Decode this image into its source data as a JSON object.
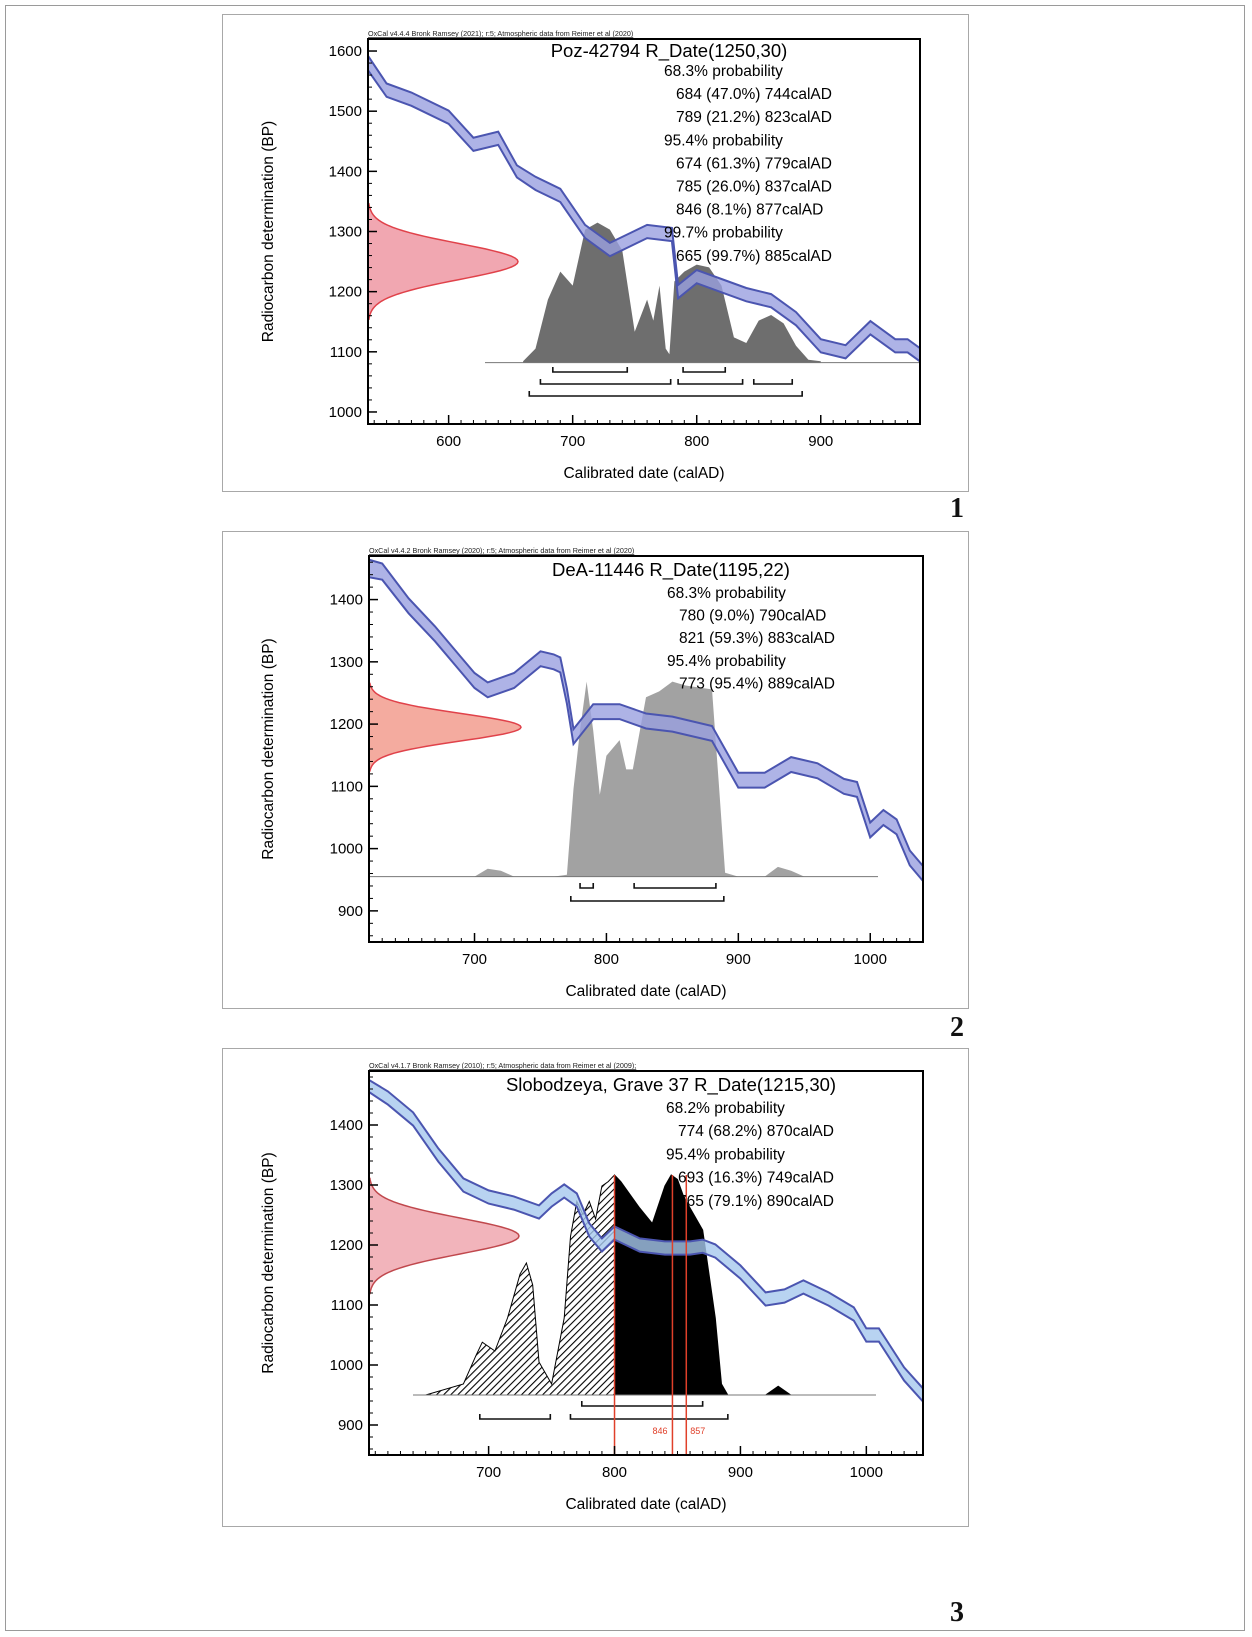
{
  "chart_data": [
    {
      "type": "area",
      "panel_label": "1",
      "header": "OxCal v4.4.4 Bronk Ramsey (2021); r:5; Atmospheric data from Reimer et al (2020)",
      "title": "Poz-42794 R_Date(1250,30)",
      "xlabel": "Calibrated date (calAD)",
      "ylabel": "Radiocarbon determination (BP)",
      "xlim": [
        535,
        980
      ],
      "ylim": [
        980,
        1620
      ],
      "xticks": [
        600,
        700,
        800,
        900
      ],
      "yticks": [
        1000,
        1100,
        1200,
        1300,
        1400,
        1500,
        1600
      ],
      "results": [
        "68.3% probability",
        "684 (47.0%) 744calAD",
        "789 (21.2%) 823calAD",
        "95.4% probability",
        "674 (61.3%) 779calAD",
        "785 (26.0%) 837calAD",
        "846 (8.1%) 877calAD",
        "99.7% probability",
        "665 (99.7%) 885calAD"
      ],
      "results_indent": [
        0,
        1,
        1,
        0,
        1,
        1,
        1,
        0,
        1
      ],
      "curve": {
        "x": [
          535,
          550,
          570,
          600,
          620,
          640,
          655,
          670,
          690,
          710,
          730,
          750,
          760,
          780,
          785,
          800,
          820,
          840,
          860,
          880,
          900,
          920,
          940,
          960,
          970,
          980
        ],
        "y": [
          1580,
          1535,
          1520,
          1490,
          1445,
          1455,
          1400,
          1380,
          1360,
          1300,
          1270,
          1290,
          1300,
          1295,
          1200,
          1225,
          1210,
          1195,
          1185,
          1155,
          1110,
          1100,
          1140,
          1110,
          1110,
          1095
        ],
        "half_width": [
          12,
          11,
          11,
          11,
          11,
          11,
          10,
          11,
          11,
          11,
          11,
          11,
          11,
          11,
          11,
          11,
          11,
          11,
          11,
          11,
          11,
          11,
          11,
          11,
          11,
          11
        ]
      },
      "measurement": {
        "mean": 1250,
        "sigma": 30,
        "color": "#e0424a",
        "fill": "#f1a7b1"
      },
      "posterior": {
        "x": [
          660,
          670,
          680,
          690,
          700,
          710,
          720,
          730,
          740,
          750,
          760,
          765,
          770,
          775,
          778,
          782,
          790,
          800,
          810,
          820,
          830,
          840,
          850,
          860,
          870,
          880,
          890,
          900
        ],
        "d": [
          0.01,
          0.1,
          0.45,
          0.65,
          0.55,
          0.95,
          1.0,
          0.95,
          0.8,
          0.22,
          0.45,
          0.3,
          0.55,
          0.1,
          0.06,
          0.58,
          0.65,
          0.7,
          0.68,
          0.55,
          0.18,
          0.14,
          0.3,
          0.34,
          0.28,
          0.12,
          0.02,
          0.01
        ],
        "baseline": 1082,
        "height": 140,
        "color": "#6e6e6e"
      },
      "ranges": [
        [
          [
            684,
            744
          ],
          [
            789,
            823
          ]
        ],
        [
          [
            674,
            779
          ],
          [
            785,
            837
          ],
          [
            846,
            877
          ]
        ],
        [
          [
            665,
            885
          ]
        ]
      ],
      "curve_color": "#4b55b0",
      "curve_fill": "#9aa0e0"
    },
    {
      "type": "area",
      "panel_label": "2",
      "header": "OxCal v4.4.2 Bronk Ramsey (2020); r:5; Atmospheric data from Reimer et al (2020)",
      "title": "DeA-11446 R_Date(1195,22)",
      "xlabel": "Calibrated date (calAD)",
      "ylabel": "Radiocarbon determination (BP)",
      "xlim": [
        620,
        1040
      ],
      "ylim": [
        850,
        1470
      ],
      "xticks": [
        700,
        800,
        900,
        1000
      ],
      "yticks": [
        900,
        1000,
        1100,
        1200,
        1300,
        1400
      ],
      "results": [
        "68.3% probability",
        "780 (9.0%) 790calAD",
        "821 (59.3%) 883calAD",
        "95.4% probability",
        "773 (95.4%) 889calAD"
      ],
      "results_indent": [
        0,
        1,
        1,
        0,
        1
      ],
      "curve": {
        "x": [
          620,
          630,
          650,
          670,
          690,
          700,
          710,
          730,
          750,
          760,
          765,
          770,
          775,
          790,
          810,
          830,
          850,
          880,
          900,
          920,
          940,
          960,
          980,
          990,
          1000,
          1010,
          1020,
          1030,
          1040
        ],
        "y": [
          1450,
          1445,
          1390,
          1345,
          1295,
          1270,
          1255,
          1270,
          1305,
          1300,
          1295,
          1245,
          1180,
          1220,
          1220,
          1205,
          1200,
          1185,
          1110,
          1110,
          1135,
          1125,
          1100,
          1095,
          1030,
          1050,
          1035,
          985,
          960
        ],
        "half_width": [
          14,
          13,
          12,
          12,
          12,
          12,
          12,
          12,
          12,
          12,
          12,
          12,
          12,
          12,
          12,
          12,
          12,
          12,
          12,
          12,
          12,
          12,
          12,
          12,
          12,
          12,
          12,
          12,
          12
        ]
      },
      "measurement": {
        "mean": 1195,
        "sigma": 22,
        "color": "#e0424a",
        "fill": "#f4ab9f"
      },
      "posterior": {
        "x": [
          650,
          700,
          710,
          720,
          730,
          760,
          770,
          775,
          780,
          785,
          790,
          795,
          800,
          810,
          815,
          820,
          830,
          840,
          850,
          860,
          870,
          880,
          885,
          890,
          900,
          920,
          930,
          940,
          950,
          1000
        ],
        "d": [
          0.0,
          0.0,
          0.04,
          0.03,
          0.0,
          0.0,
          0.01,
          0.45,
          0.75,
          1.0,
          0.75,
          0.42,
          0.62,
          0.7,
          0.55,
          0.55,
          0.92,
          0.95,
          1.0,
          0.98,
          0.97,
          0.96,
          0.5,
          0.02,
          0.0,
          0.0,
          0.05,
          0.03,
          0.0,
          0.0
        ],
        "baseline": 955,
        "height": 195,
        "color": "#a2a2a2"
      },
      "ranges": [
        [
          [
            780,
            790
          ],
          [
            821,
            883
          ]
        ],
        [
          [
            773,
            889
          ]
        ]
      ],
      "curve_color": "#4b55b0",
      "curve_fill": "#9aa0e0"
    },
    {
      "type": "area",
      "panel_label": "3",
      "header": "OxCal v4.1.7 Bronk Ramsey (2010); r:5; Atmospheric data from Reimer et al (2009);",
      "title": "Slobodzeya, Grave 37 R_Date(1215,30)",
      "xlabel": "Calibrated date (calAD)",
      "ylabel": "Radiocarbon determination (BP)",
      "xlim": [
        605,
        1045
      ],
      "ylim": [
        850,
        1490
      ],
      "xticks": [
        700,
        800,
        900,
        1000
      ],
      "yticks": [
        900,
        1000,
        1100,
        1200,
        1300,
        1400
      ],
      "results": [
        "68.2% probability",
        "774 (68.2%) 870calAD",
        "95.4% probability",
        "693 (16.3%) 749calAD",
        "765 (79.1%) 890calAD"
      ],
      "results_indent": [
        0,
        1,
        0,
        1,
        1
      ],
      "curve": {
        "x": [
          605,
          620,
          640,
          660,
          680,
          700,
          720,
          740,
          750,
          760,
          770,
          780,
          790,
          800,
          810,
          820,
          840,
          860,
          870,
          880,
          900,
          920,
          935,
          950,
          970,
          990,
          1000,
          1010,
          1030,
          1045
        ],
        "y": [
          1465,
          1445,
          1410,
          1350,
          1300,
          1280,
          1270,
          1255,
          1275,
          1290,
          1275,
          1225,
          1200,
          1220,
          1210,
          1200,
          1195,
          1195,
          1198,
          1190,
          1155,
          1110,
          1115,
          1130,
          1110,
          1085,
          1050,
          1050,
          985,
          950
        ],
        "half_width": [
          10,
          11,
          11,
          11,
          11,
          11,
          11,
          11,
          11,
          11,
          11,
          11,
          11,
          11,
          11,
          11,
          11,
          11,
          11,
          11,
          11,
          11,
          11,
          11,
          11,
          11,
          11,
          11,
          11,
          11
        ]
      },
      "measurement": {
        "mean": 1215,
        "sigma": 30,
        "color": "#c0484d",
        "fill": "#f2b4bb"
      },
      "posterior": {
        "x": [
          650,
          680,
          690,
          695,
          705,
          715,
          725,
          730,
          735,
          740,
          750,
          760,
          765,
          770,
          775,
          780,
          785,
          790,
          795,
          800,
          805,
          810,
          820,
          830,
          840,
          845,
          850,
          855,
          860,
          870,
          880,
          885,
          890,
          920,
          930,
          940,
          980
        ],
        "d": [
          0.0,
          0.05,
          0.18,
          0.24,
          0.2,
          0.35,
          0.55,
          0.6,
          0.5,
          0.15,
          0.05,
          0.35,
          0.72,
          0.88,
          0.82,
          0.88,
          0.8,
          0.95,
          0.97,
          1.0,
          0.97,
          0.93,
          0.85,
          0.78,
          0.95,
          1.0,
          0.98,
          0.9,
          0.85,
          0.75,
          0.35,
          0.05,
          0.0,
          0.0,
          0.04,
          0.0,
          0.0
        ],
        "baseline": 950,
        "height": 220,
        "color": "#000000",
        "hatch_below": 800
      },
      "ranges": [
        [
          [
            774,
            870
          ]
        ],
        [
          [
            693,
            749
          ],
          [
            765,
            890
          ]
        ]
      ],
      "markers": [
        {
          "x": 800,
          "label": ""
        },
        {
          "x": 846,
          "label": "846"
        },
        {
          "x": 857,
          "label": "857"
        }
      ],
      "curve_color": "#4b55b0",
      "curve_fill": "#a6c8ee"
    }
  ]
}
